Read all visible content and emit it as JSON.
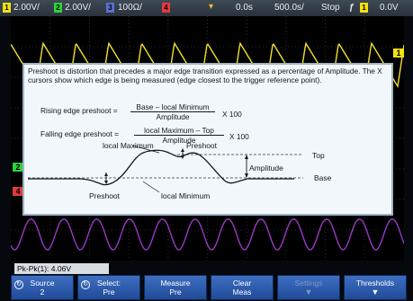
{
  "colors": {
    "ch1": "#f2e20e",
    "ch2": "#2fd13a",
    "ch3": "#5a6fd6",
    "ch4": "#e23b3b",
    "trace_yellow": "#f4e12a",
    "trace_purple": "#9a39c6",
    "softkey_blue": "#2b5fb3"
  },
  "status_bar": {
    "ch1_badge": "1",
    "ch1_scale": "2.00V/",
    "ch2_badge": "2",
    "ch2_scale": "2.00V/",
    "ch3_badge": "3",
    "ch3_scale": "100Ω/",
    "ch4_badge": "4",
    "delay": "0.0s",
    "timebase": "500.0s/",
    "run_state": "Stop",
    "trigger_icon": "trigger-edge-icon",
    "trig_badge": "1",
    "trig_level": "0.0V"
  },
  "markers": {
    "left_ch2": "2",
    "left_ch4": "4",
    "right_ch1": "1",
    "trigger_top": "T"
  },
  "help": {
    "paragraph": "Preshoot is distortion that precedes a major edge transition expressed as a percentage of Amplitude. The X cursors show which edge is being measured (edge closest to the trigger reference point).",
    "rising": {
      "label": "Rising edge preshoot =",
      "numerator": "Base – local Minimum",
      "denominator": "Amplitude",
      "multiplier": "X 100"
    },
    "falling": {
      "label": "Falling edge preshoot =",
      "numerator": "local Maximum – Top",
      "denominator": "Amplitude",
      "multiplier": "X 100"
    },
    "diagram": {
      "local_maximum": "local Maximum",
      "preshoot_top": "Preshoot",
      "top": "Top",
      "amplitude": "Amplitude",
      "base": "Base",
      "preshoot_bottom": "Preshoot",
      "local_minimum": "local Minimum"
    }
  },
  "readout": "Pk-Pk(1): 4.06V",
  "softkeys": [
    {
      "line1": "Source",
      "line2": "2",
      "icon": "rotate-knob-icon"
    },
    {
      "line1": "Select:",
      "line2": "Pre",
      "icon": "rotate-knob-icon"
    },
    {
      "line1": "Measure",
      "line2": "Pre"
    },
    {
      "line1": "Clear",
      "line2": "Meas"
    },
    {
      "line1": "Settings",
      "line2": "",
      "disabled": true,
      "submenu": "down-arrow-icon"
    },
    {
      "line1": "Thresholds",
      "line2": "",
      "submenu": "down-arrow-icon"
    }
  ]
}
